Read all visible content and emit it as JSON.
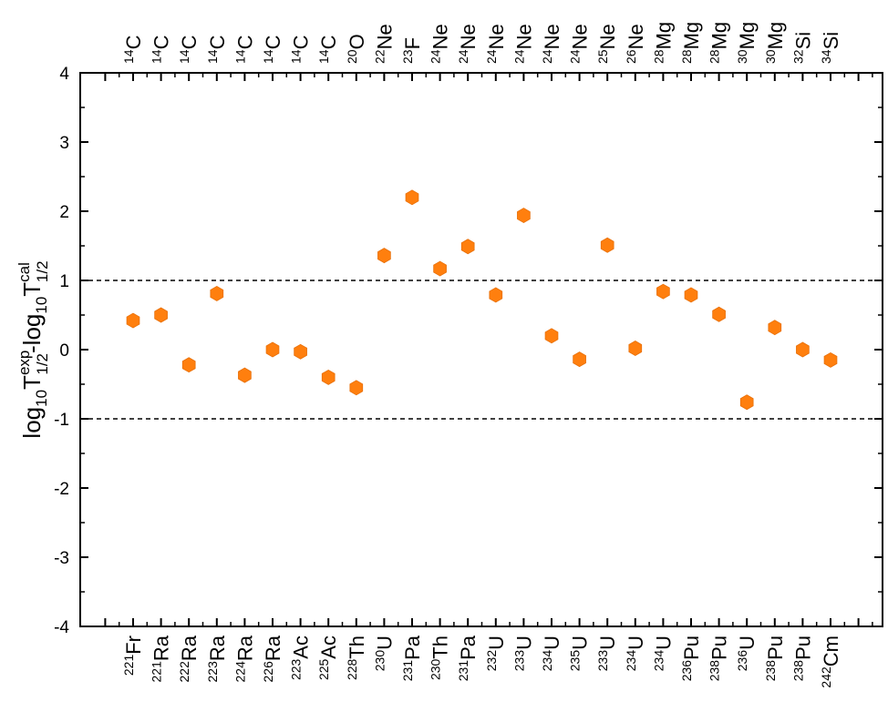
{
  "chart_data": {
    "type": "scatter",
    "title": "",
    "ylabel": {
      "log_prefix": "log",
      "log_sub": "10",
      "symbol": "T",
      "exp_sup": "exp",
      "half_sub": "1/2",
      "minus": "-",
      "cal_sup": "cal"
    },
    "ylim": [
      -4,
      4
    ],
    "yticks": [
      -4,
      -3,
      -2,
      -1,
      0,
      1,
      2,
      3,
      4
    ],
    "ytick_labels": [
      "-4",
      "-3",
      "-2",
      "-1",
      "0",
      "1",
      "2",
      "3",
      "4"
    ],
    "reference_lines": [
      1,
      -1
    ],
    "marker_color": "#ff7f0e",
    "points": [
      {
        "parent_mass": "221",
        "parent": "Fr",
        "cluster_mass": "14",
        "cluster": "C",
        "value": 0.42
      },
      {
        "parent_mass": "221",
        "parent": "Ra",
        "cluster_mass": "14",
        "cluster": "C",
        "value": 0.5
      },
      {
        "parent_mass": "222",
        "parent": "Ra",
        "cluster_mass": "14",
        "cluster": "C",
        "value": -0.22
      },
      {
        "parent_mass": "223",
        "parent": "Ra",
        "cluster_mass": "14",
        "cluster": "C",
        "value": 0.81
      },
      {
        "parent_mass": "224",
        "parent": "Ra",
        "cluster_mass": "14",
        "cluster": "C",
        "value": -0.37
      },
      {
        "parent_mass": "226",
        "parent": "Ra",
        "cluster_mass": "14",
        "cluster": "C",
        "value": 0.0
      },
      {
        "parent_mass": "223",
        "parent": "Ac",
        "cluster_mass": "14",
        "cluster": "C",
        "value": -0.03
      },
      {
        "parent_mass": "225",
        "parent": "Ac",
        "cluster_mass": "14",
        "cluster": "C",
        "value": -0.4
      },
      {
        "parent_mass": "228",
        "parent": "Th",
        "cluster_mass": "20",
        "cluster": "O",
        "value": -0.55
      },
      {
        "parent_mass": "230",
        "parent": "U",
        "cluster_mass": "22",
        "cluster": "Ne",
        "value": 1.36
      },
      {
        "parent_mass": "231",
        "parent": "Pa",
        "cluster_mass": "23",
        "cluster": "F",
        "value": 2.2
      },
      {
        "parent_mass": "230",
        "parent": "Th",
        "cluster_mass": "24",
        "cluster": "Ne",
        "value": 1.17
      },
      {
        "parent_mass": "231",
        "parent": "Pa",
        "cluster_mass": "24",
        "cluster": "Ne",
        "value": 1.49
      },
      {
        "parent_mass": "232",
        "parent": "U",
        "cluster_mass": "24",
        "cluster": "Ne",
        "value": 0.79
      },
      {
        "parent_mass": "233",
        "parent": "U",
        "cluster_mass": "24",
        "cluster": "Ne",
        "value": 1.94
      },
      {
        "parent_mass": "234",
        "parent": "U",
        "cluster_mass": "24",
        "cluster": "Ne",
        "value": 0.2
      },
      {
        "parent_mass": "235",
        "parent": "U",
        "cluster_mass": "24",
        "cluster": "Ne",
        "value": -0.14
      },
      {
        "parent_mass": "233",
        "parent": "U",
        "cluster_mass": "25",
        "cluster": "Ne",
        "value": 1.51
      },
      {
        "parent_mass": "234",
        "parent": "U",
        "cluster_mass": "26",
        "cluster": "Ne",
        "value": 0.02
      },
      {
        "parent_mass": "234",
        "parent": "U",
        "cluster_mass": "28",
        "cluster": "Mg",
        "value": 0.84
      },
      {
        "parent_mass": "236",
        "parent": "Pu",
        "cluster_mass": "28",
        "cluster": "Mg",
        "value": 0.79
      },
      {
        "parent_mass": "238",
        "parent": "Pu",
        "cluster_mass": "28",
        "cluster": "Mg",
        "value": 0.51
      },
      {
        "parent_mass": "236",
        "parent": "U",
        "cluster_mass": "30",
        "cluster": "Mg",
        "value": -0.76
      },
      {
        "parent_mass": "238",
        "parent": "Pu",
        "cluster_mass": "30",
        "cluster": "Mg",
        "value": 0.32
      },
      {
        "parent_mass": "238",
        "parent": "Pu",
        "cluster_mass": "32",
        "cluster": "Si",
        "value": 0.0
      },
      {
        "parent_mass": "242",
        "parent": "Cm",
        "cluster_mass": "34",
        "cluster": "Si",
        "value": -0.15
      }
    ]
  }
}
